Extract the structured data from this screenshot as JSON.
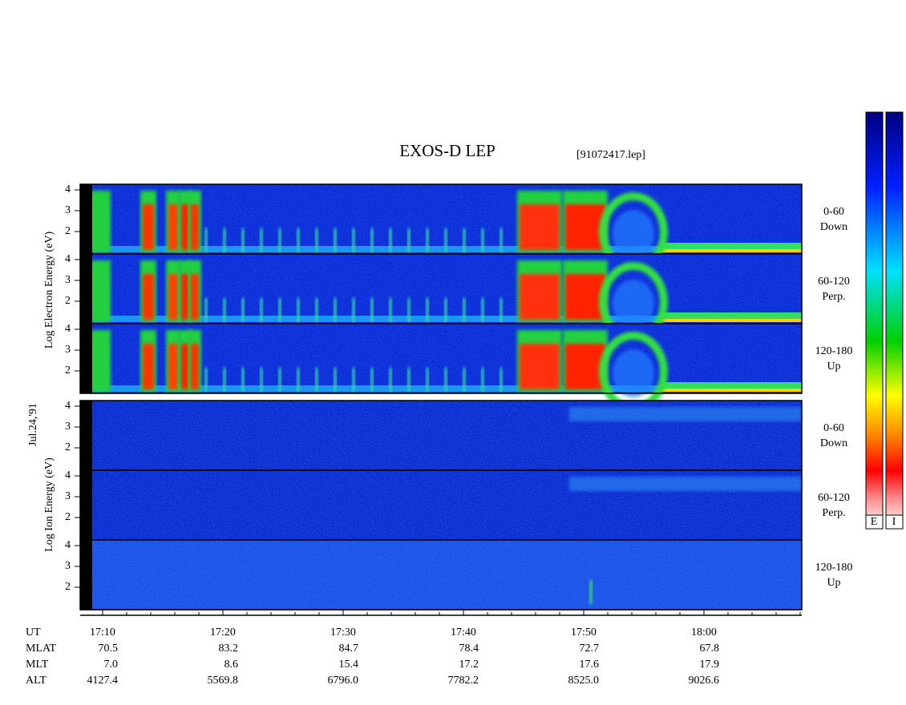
{
  "title": "EXOS-D LEP",
  "file": "[91072417.lep]",
  "date": "Jul.24,'91",
  "energy_ticks": [
    2,
    3,
    4
  ],
  "electron": {
    "axis_label": "Log Electron Energy (eV)",
    "panels": [
      [
        "0-60",
        "Down"
      ],
      [
        "60-120",
        "Perp."
      ],
      [
        "120-180",
        "Up"
      ]
    ]
  },
  "ion": {
    "axis_label": "Log Ion Energy (eV)",
    "panels": [
      [
        "0-60",
        "Down"
      ],
      [
        "60-120",
        "Perp."
      ],
      [
        "120-180",
        "Up"
      ]
    ]
  },
  "orbit": {
    "row_labels": [
      "UT",
      "MLAT",
      "MLT",
      "ALT"
    ],
    "UT": [
      "17:10",
      "17:20",
      "17:30",
      "17:40",
      "17:50",
      "18:00"
    ],
    "MLAT": [
      "70.5",
      "83.2",
      "84.7",
      "78.4",
      "72.7",
      "67.8"
    ],
    "MLT": [
      "7.0",
      "8.6",
      "15.4",
      "17.2",
      "17.6",
      "17.9"
    ],
    "ALT": [
      "4127.4",
      "5569.8",
      "6796.0",
      "7782.2",
      "8525.0",
      "9026.6"
    ]
  },
  "colorbar_labels": [
    "E",
    "I"
  ]
}
